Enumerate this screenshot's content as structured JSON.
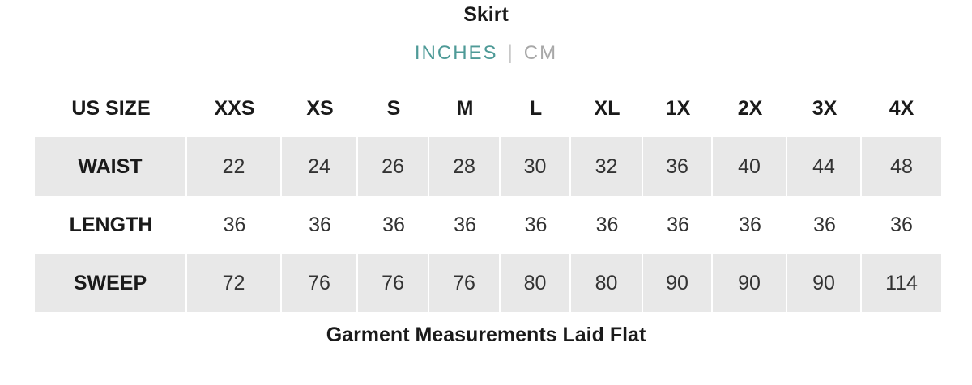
{
  "title": "Skirt",
  "units": {
    "active": "INCHES",
    "separator": "|",
    "inactive": "CM"
  },
  "accent_color": "#4e9a97",
  "table": {
    "header": [
      "US SIZE",
      "XXS",
      "XS",
      "S",
      "M",
      "L",
      "XL",
      "1X",
      "2X",
      "3X",
      "4X"
    ],
    "rows": [
      {
        "label": "WAIST",
        "values": [
          "22",
          "24",
          "26",
          "28",
          "30",
          "32",
          "36",
          "40",
          "44",
          "48"
        ]
      },
      {
        "label": "LENGTH",
        "values": [
          "36",
          "36",
          "36",
          "36",
          "36",
          "36",
          "36",
          "36",
          "36",
          "36"
        ]
      },
      {
        "label": "SWEEP",
        "values": [
          "72",
          "76",
          "76",
          "76",
          "80",
          "80",
          "90",
          "90",
          "90",
          "114"
        ]
      }
    ]
  },
  "footer": "Garment Measurements Laid Flat"
}
